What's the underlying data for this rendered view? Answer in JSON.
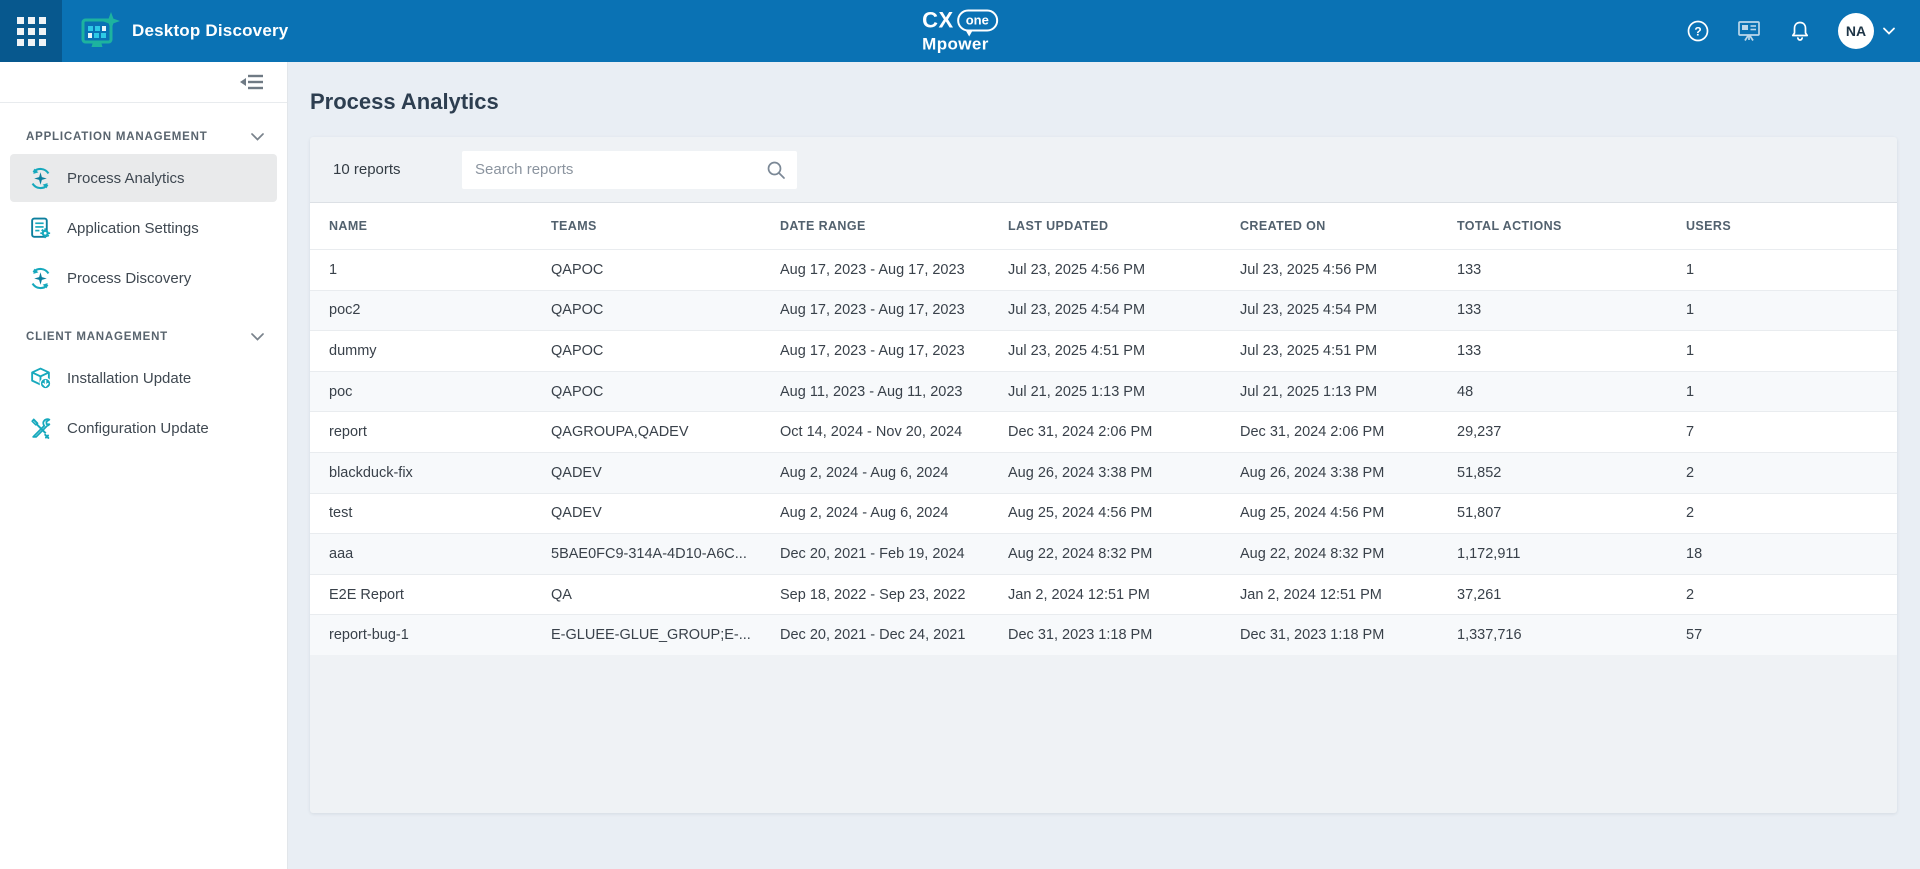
{
  "header": {
    "app_title": "Desktop Discovery",
    "logo_cx": "CX",
    "logo_one": "one",
    "logo_mpower": "Mpower",
    "avatar_initials": "NA"
  },
  "sidebar": {
    "sections": [
      {
        "label": "APPLICATION MANAGEMENT",
        "items": [
          {
            "label": "Process Analytics",
            "icon": "process-analytics-icon",
            "selected": true
          },
          {
            "label": "Application Settings",
            "icon": "application-settings-icon",
            "selected": false
          },
          {
            "label": "Process Discovery",
            "icon": "process-discovery-icon",
            "selected": false
          }
        ]
      },
      {
        "label": "CLIENT MANAGEMENT",
        "items": [
          {
            "label": "Installation Update",
            "icon": "installation-update-icon",
            "selected": false
          },
          {
            "label": "Configuration Update",
            "icon": "configuration-update-icon",
            "selected": false
          }
        ]
      }
    ]
  },
  "main": {
    "page_title": "Process Analytics",
    "reports_count": "10 reports",
    "search_placeholder": "Search reports",
    "table": {
      "columns": [
        "NAME",
        "TEAMS",
        "DATE RANGE",
        "LAST UPDATED",
        "CREATED ON",
        "TOTAL ACTIONS",
        "USERS"
      ],
      "rows": [
        [
          "1",
          "QAPOC",
          "Aug 17, 2023 - Aug 17, 2023",
          "Jul 23, 2025 4:56 PM",
          "Jul 23, 2025 4:56 PM",
          "133",
          "1"
        ],
        [
          "poc2",
          "QAPOC",
          "Aug 17, 2023 - Aug 17, 2023",
          "Jul 23, 2025 4:54 PM",
          "Jul 23, 2025 4:54 PM",
          "133",
          "1"
        ],
        [
          "dummy",
          "QAPOC",
          "Aug 17, 2023 - Aug 17, 2023",
          "Jul 23, 2025 4:51 PM",
          "Jul 23, 2025 4:51 PM",
          "133",
          "1"
        ],
        [
          "poc",
          "QAPOC",
          "Aug 11, 2023 - Aug 11, 2023",
          "Jul 21, 2025 1:13 PM",
          "Jul 21, 2025 1:13 PM",
          "48",
          "1"
        ],
        [
          "report",
          "QAGROUPA,QADEV",
          "Oct 14, 2024 - Nov 20, 2024",
          "Dec 31, 2024 2:06 PM",
          "Dec 31, 2024 2:06 PM",
          "29,237",
          "7"
        ],
        [
          "blackduck-fix",
          "QADEV",
          "Aug 2, 2024 - Aug 6, 2024",
          "Aug 26, 2024 3:38 PM",
          "Aug 26, 2024 3:38 PM",
          "51,852",
          "2"
        ],
        [
          "test",
          "QADEV",
          "Aug 2, 2024 - Aug 6, 2024",
          "Aug 25, 2024 4:56 PM",
          "Aug 25, 2024 4:56 PM",
          "51,807",
          "2"
        ],
        [
          "aaa",
          "5BAE0FC9-314A-4D10-A6C...",
          "Dec 20, 2021 - Feb 19, 2024",
          "Aug 22, 2024 8:32 PM",
          "Aug 22, 2024 8:32 PM",
          "1,172,911",
          "18"
        ],
        [
          "E2E Report",
          "QA",
          "Sep 18, 2022 - Sep 23, 2022",
          "Jan 2, 2024 12:51 PM",
          "Jan 2, 2024 12:51 PM",
          "37,261",
          "2"
        ],
        [
          "report-bug-1",
          "E-GLUEE-GLUE_GROUP;E-...",
          "Dec 20, 2021 - Dec 24, 2021",
          "Dec 31, 2023 1:18 PM",
          "Dec 31, 2023 1:18 PM",
          "1,337,716",
          "57"
        ]
      ]
    }
  },
  "colors": {
    "header_blue": "#0a72b4",
    "waffle_blue": "#07588e",
    "accent_teal": "#17a9bd",
    "accent_dark_teal": "#0c7f9e",
    "accent_cyan": "#2ec9e6",
    "main_bg": "#e9eef4",
    "selected_item_bg": "#e9eaeb"
  }
}
